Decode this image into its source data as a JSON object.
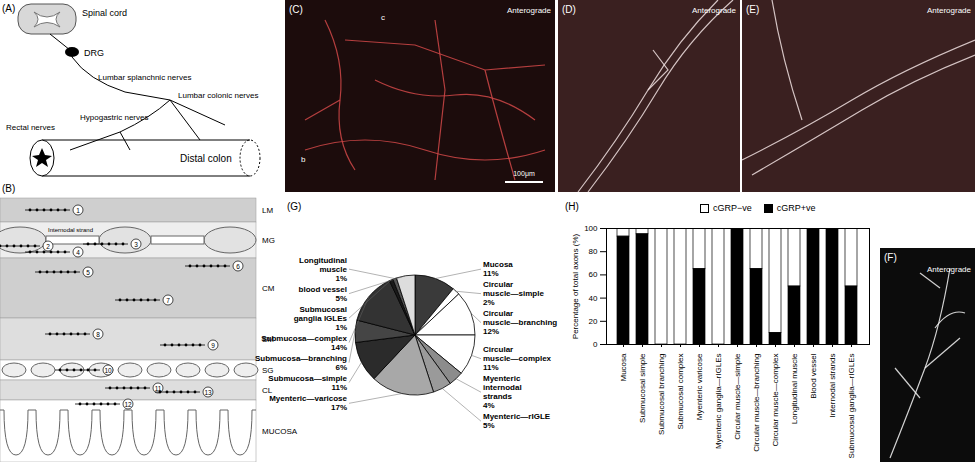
{
  "panels": {
    "A": {
      "label": "(A)",
      "spinal_cord": "Spinal cord",
      "drg": "DRG",
      "splanchnic": "Lumbar splanchnic nerves",
      "colonic": "Lumbar colonic nerves",
      "hypogastric": "Hypogastric nerves",
      "rectal": "Rectal nerves",
      "colon": "Distal colon"
    },
    "B": {
      "label": "(B)",
      "layers": [
        "LM",
        "MG",
        "CM",
        "SM",
        "SG",
        "CL",
        "MUCOSA"
      ],
      "annotation": "Internodal strand",
      "numbers": [
        1,
        2,
        3,
        4,
        5,
        6,
        7,
        8,
        9,
        10,
        11,
        12,
        13
      ]
    },
    "C": {
      "label": "(C)",
      "annotation": "Anterograde",
      "scale_bar": "100μm",
      "arrows": [
        "c",
        "b"
      ]
    },
    "D": {
      "label": "(D)",
      "annotation": "Anterograde"
    },
    "E": {
      "label": "(E)",
      "annotation": "Anterograde"
    },
    "F": {
      "label": "(F)",
      "annotation": "Anterograde"
    }
  },
  "chart_data": [
    {
      "type": "pie",
      "title": "(G)",
      "categories": [
        "Mucosa",
        "Circular muscle—simple",
        "Circular muscle—branching",
        "Circular muscle—complex",
        "Myenteric internodal strands",
        "Myenteric—rIGLE",
        "Myenteric—varicose",
        "Submucosa—simple",
        "Submucosa—branching",
        "Submucosa—complex",
        "Submucosal ganglia IGLEs",
        "Longitudinal muscle",
        "blood vessel"
      ],
      "values": [
        11,
        2,
        12,
        11,
        4,
        5,
        17,
        11,
        6,
        14,
        1,
        1,
        5
      ],
      "value_labels": [
        "11%",
        "2%",
        "12%",
        "11%",
        "4%",
        "5%",
        "17%",
        "11%",
        "6%",
        "14%",
        "1%",
        "1%",
        "5%"
      ],
      "colors": [
        "#3a3a3a",
        "#ffffff",
        "#ffffff",
        "#ffffff",
        "#8c8c8c",
        "#9a9a9a",
        "#a8a8a8",
        "#2b2b2b",
        "#454545",
        "#333333",
        "#1a1a1a",
        "#555555",
        "#dddddd"
      ],
      "data_labels": true
    },
    {
      "type": "bar",
      "title": "(H)",
      "stacked": true,
      "legend": "top-right",
      "categories": [
        "Mucosa",
        "Submucosal simple",
        "Submucosal branching",
        "Submucosal complex",
        "Myenteric varicose",
        "Myenteric ganglia—rIGLEs",
        "Circular muscle—simple",
        "Circular muscle—branching",
        "Circular muscle—complex",
        "Longitudinal muscle",
        "Blood vessel",
        "Internodal strands",
        "Submucosal ganglia—rIGLEs"
      ],
      "ylabel": "Percentage of total axons (%)",
      "ylim": [
        0,
        100
      ],
      "yticks": [
        0,
        20,
        40,
        60,
        80,
        100
      ],
      "series": [
        {
          "name": "cGRP−ve",
          "color": "#ffffff",
          "values": [
            7,
            5,
            100,
            100,
            35,
            100,
            0,
            35,
            90,
            50,
            0,
            0,
            50
          ]
        },
        {
          "name": "cGRP+ve",
          "color": "#000000",
          "values": [
            93,
            95,
            0,
            0,
            65,
            0,
            100,
            65,
            10,
            50,
            100,
            100,
            50
          ]
        }
      ]
    }
  ]
}
